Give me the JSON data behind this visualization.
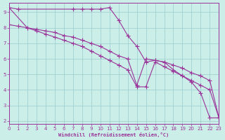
{
  "bg_color": "#cceee8",
  "grid_color": "#99cccc",
  "line_color": "#993399",
  "xlim": [
    0,
    23
  ],
  "ylim": [
    1.8,
    9.6
  ],
  "xticks": [
    0,
    1,
    2,
    3,
    4,
    5,
    6,
    7,
    8,
    9,
    10,
    11,
    12,
    13,
    14,
    15,
    16,
    17,
    18,
    19,
    20,
    21,
    22,
    23
  ],
  "yticks": [
    2,
    3,
    4,
    5,
    6,
    7,
    8,
    9
  ],
  "xlabel": "Windchill (Refroidissement éolien,°C)",
  "line1_x": [
    0,
    1,
    7,
    8,
    9,
    10,
    11,
    12,
    13,
    14,
    15,
    16,
    17,
    18,
    19,
    20,
    21,
    22,
    23
  ],
  "line1_y": [
    9.3,
    9.2,
    9.2,
    9.2,
    9.2,
    9.2,
    9.3,
    8.5,
    7.5,
    6.8,
    5.8,
    5.9,
    5.8,
    5.3,
    4.9,
    4.5,
    3.8,
    2.2,
    2.2
  ],
  "line2_x": [
    0,
    1,
    2,
    3,
    4,
    5,
    6,
    7,
    8,
    9,
    10,
    11,
    12,
    13,
    14,
    15,
    16,
    17,
    18,
    19,
    20,
    21,
    22,
    23
  ],
  "line2_y": [
    8.2,
    8.1,
    8.0,
    7.9,
    7.8,
    7.7,
    7.5,
    7.4,
    7.2,
    7.0,
    6.8,
    6.5,
    6.2,
    6.0,
    4.3,
    6.0,
    5.9,
    5.8,
    5.6,
    5.4,
    5.1,
    4.9,
    4.6,
    2.2
  ],
  "line3_x": [
    0,
    2,
    3,
    4,
    5,
    6,
    7,
    8,
    9,
    10,
    11,
    12,
    13,
    14,
    15,
    16,
    17,
    18,
    19,
    20,
    21,
    22,
    23
  ],
  "line3_y": [
    9.3,
    8.0,
    7.8,
    7.6,
    7.4,
    7.2,
    7.0,
    6.8,
    6.5,
    6.2,
    5.9,
    5.6,
    5.3,
    4.2,
    4.2,
    5.8,
    5.5,
    5.2,
    4.9,
    4.6,
    4.3,
    4.0,
    2.2
  ]
}
